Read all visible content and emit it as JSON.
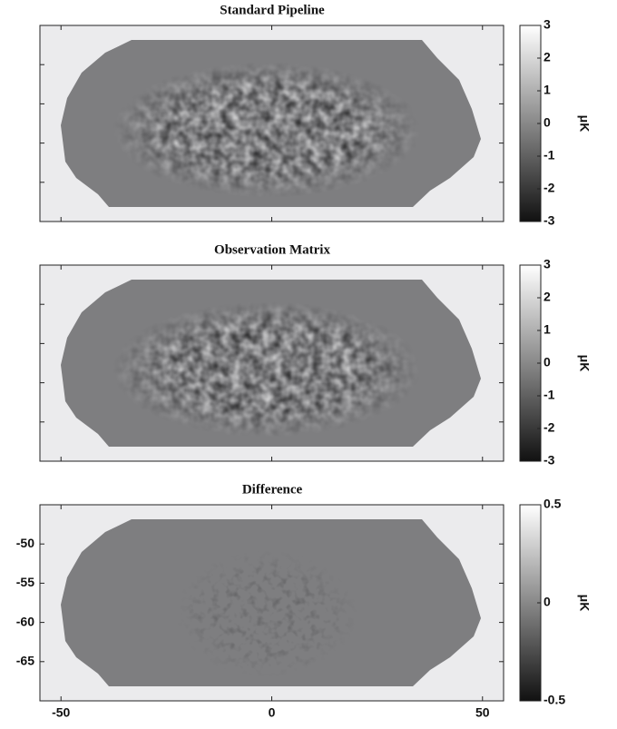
{
  "chart_data": [
    {
      "type": "map",
      "title": "Standard Pipeline",
      "xlim": [
        -55,
        55
      ],
      "xticks": [
        -50,
        0,
        50
      ],
      "ylim": [
        -70,
        -45
      ],
      "yticks": [
        -50,
        -55,
        -60,
        -65
      ],
      "tick_labels": false,
      "colorbar": {
        "label": "μK",
        "lim": [
          -3,
          3
        ],
        "ticks": [
          3,
          2,
          1,
          0,
          -1,
          -2,
          -3
        ]
      }
    },
    {
      "type": "map",
      "title": "Observation Matrix",
      "xlim": [
        -55,
        55
      ],
      "xticks": [
        -50,
        0,
        50
      ],
      "ylim": [
        -70,
        -45
      ],
      "yticks": [
        -50,
        -55,
        -60,
        -65
      ],
      "tick_labels": false,
      "colorbar": {
        "label": "μK",
        "lim": [
          -3,
          3
        ],
        "ticks": [
          3,
          2,
          1,
          0,
          -1,
          -2,
          -3
        ]
      }
    },
    {
      "type": "map",
      "title": "Difference",
      "xlim": [
        -55,
        55
      ],
      "xticks": [
        -50,
        0,
        50
      ],
      "ylim": [
        -70,
        -45
      ],
      "yticks": [
        -50,
        -55,
        -60,
        -65
      ],
      "colorbar": {
        "label": "μK",
        "lim": [
          -0.5,
          0.5
        ],
        "ticks": [
          0.5,
          0,
          -0.5
        ]
      }
    }
  ]
}
